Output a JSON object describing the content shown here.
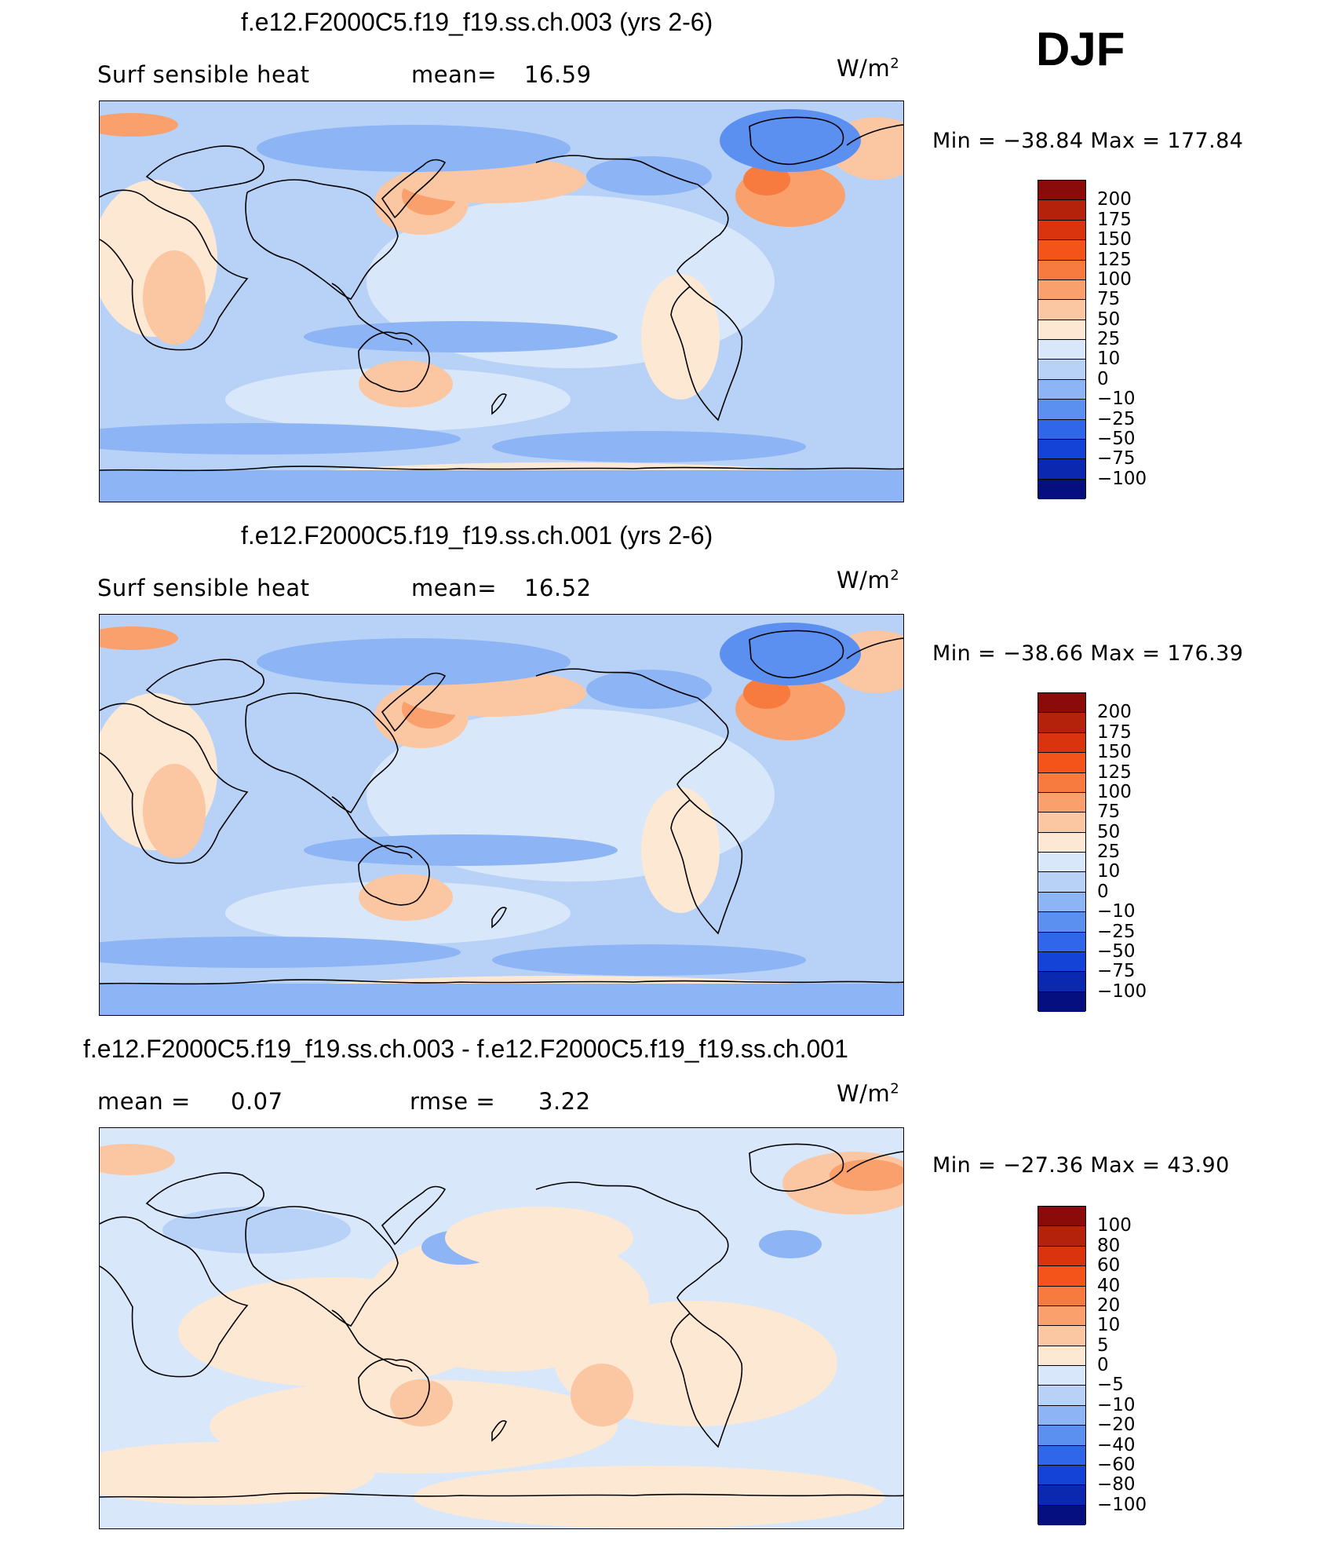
{
  "season": "DJF",
  "units": "W/m",
  "units_sup": "2",
  "panels": [
    {
      "title": "f.e12.F2000C5.f19_f19.ss.ch.003 (yrs 2-6)",
      "left_label": "Surf  sensible  heat",
      "stat_label": "mean=",
      "stat_value": "16.59",
      "minmax": "Min  =  −38.84  Max  =  177.84",
      "colorbar": {
        "colors": [
          "#8b0a0a",
          "#b5220c",
          "#d9340e",
          "#f4531a",
          "#f77a3e",
          "#f9a06d",
          "#fbc6a2",
          "#fde8d3",
          "#d8e8fa",
          "#b8d2f7",
          "#8db4f4",
          "#5b8ff0",
          "#2f66ea",
          "#1443d8",
          "#0a28b0",
          "#050f80"
        ],
        "ticks": [
          "200",
          "175",
          "150",
          "125",
          "100",
          "75",
          "50",
          "25",
          "10",
          "0",
          "−10",
          "−25",
          "−50",
          "−75",
          "−100"
        ]
      }
    },
    {
      "title": "f.e12.F2000C5.f19_f19.ss.ch.001 (yrs 2-6)",
      "left_label": "Surf  sensible  heat",
      "stat_label": "mean=",
      "stat_value": "16.52",
      "minmax": "Min  =  −38.66  Max  =  176.39",
      "colorbar": {
        "colors": [
          "#8b0a0a",
          "#b5220c",
          "#d9340e",
          "#f4531a",
          "#f77a3e",
          "#f9a06d",
          "#fbc6a2",
          "#fde8d3",
          "#d8e8fa",
          "#b8d2f7",
          "#8db4f4",
          "#5b8ff0",
          "#2f66ea",
          "#1443d8",
          "#0a28b0",
          "#050f80"
        ],
        "ticks": [
          "200",
          "175",
          "150",
          "125",
          "100",
          "75",
          "50",
          "25",
          "10",
          "0",
          "−10",
          "−25",
          "−50",
          "−75",
          "−100"
        ]
      }
    },
    {
      "title": "f.e12.F2000C5.f19_f19.ss.ch.003 - f.e12.F2000C5.f19_f19.ss.ch.001",
      "left_label": "mean  =",
      "left_value": "0.07",
      "stat_label": "rmse  =",
      "stat_value": "3.22",
      "minmax": "Min  =  −27.36  Max  =    43.90",
      "colorbar": {
        "colors": [
          "#8b0a0a",
          "#b5220c",
          "#d9340e",
          "#f4531a",
          "#f77a3e",
          "#f9a06d",
          "#fbc6a2",
          "#fde8d3",
          "#d8e8fa",
          "#b8d2f7",
          "#8db4f4",
          "#5b8ff0",
          "#2f66ea",
          "#1443d8",
          "#0a28b0",
          "#050f80"
        ],
        "ticks": [
          "100",
          "80",
          "60",
          "40",
          "20",
          "10",
          "5",
          "0",
          "−5",
          "−10",
          "−20",
          "−40",
          "−60",
          "−80",
          "−100"
        ]
      }
    }
  ]
}
